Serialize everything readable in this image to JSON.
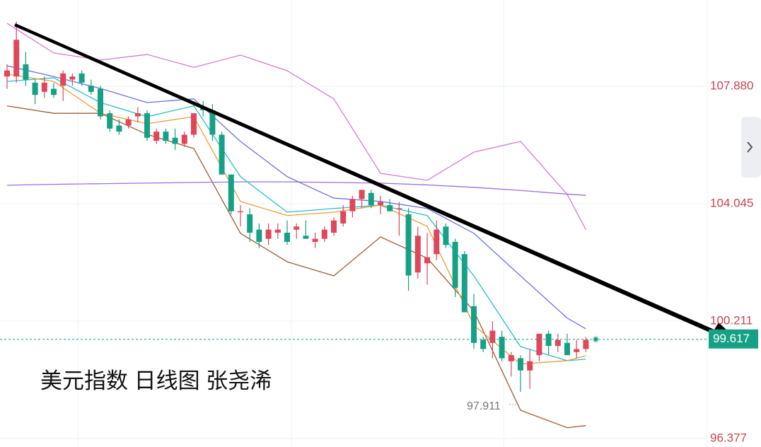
{
  "chart_data": {
    "type": "candlestick",
    "title": "美元指数 日线图 张尧浠",
    "up_color": "#e0475a",
    "down_color": "#16a085",
    "ylim": [
      96.1,
      110.7
    ],
    "yticks": [
      {
        "value": 107.88,
        "label": "107.880"
      },
      104.045,
      100.211,
      96.377
    ],
    "last_price": 99.617,
    "low_label": 97.911,
    "candles": [
      [
        108.2,
        108.6,
        107.8,
        108.4
      ],
      [
        108.2,
        110.0,
        108.0,
        109.4
      ],
      [
        108.6,
        109.0,
        107.9,
        108.1
      ],
      [
        108.0,
        108.1,
        107.3,
        107.6
      ],
      [
        107.7,
        108.2,
        107.5,
        108.0
      ],
      [
        107.8,
        108.0,
        107.5,
        107.6
      ],
      [
        107.9,
        108.4,
        107.4,
        108.3
      ],
      [
        108.1,
        108.3,
        107.9,
        108.2
      ],
      [
        108.3,
        108.4,
        107.9,
        108.0
      ],
      [
        107.9,
        108.1,
        107.6,
        107.7
      ],
      [
        107.8,
        107.9,
        106.8,
        106.9
      ],
      [
        107.0,
        107.1,
        106.4,
        106.5
      ],
      [
        106.6,
        106.8,
        106.3,
        106.4
      ],
      [
        106.6,
        106.9,
        106.5,
        106.8
      ],
      [
        106.9,
        107.2,
        106.7,
        107.0
      ],
      [
        107.0,
        107.1,
        106.1,
        106.2
      ],
      [
        106.1,
        106.5,
        106.0,
        106.4
      ],
      [
        106.4,
        106.5,
        106.0,
        106.1
      ],
      [
        106.2,
        106.5,
        105.8,
        106.0
      ],
      [
        106.0,
        106.4,
        105.9,
        106.3
      ],
      [
        106.3,
        107.0,
        106.2,
        107.0
      ],
      [
        107.2,
        107.4,
        106.9,
        107.1
      ],
      [
        107.1,
        107.3,
        106.1,
        106.3
      ],
      [
        106.3,
        106.4,
        105.0,
        105.0
      ],
      [
        105.0,
        105.0,
        103.7,
        103.8
      ],
      [
        103.8,
        104.0,
        103.3,
        103.8
      ],
      [
        103.7,
        103.9,
        102.8,
        103.1
      ],
      [
        103.2,
        103.4,
        102.6,
        102.8
      ],
      [
        102.9,
        103.4,
        102.7,
        103.2
      ],
      [
        103.1,
        103.4,
        102.9,
        103.2
      ],
      [
        103.1,
        103.5,
        102.7,
        102.8
      ],
      [
        103.2,
        103.4,
        102.9,
        103.3
      ],
      [
        103.0,
        103.5,
        102.9,
        102.9
      ],
      [
        102.8,
        103.1,
        102.6,
        102.9
      ],
      [
        102.9,
        103.3,
        102.8,
        103.2
      ],
      [
        103.1,
        103.6,
        103.0,
        103.5
      ],
      [
        103.4,
        104.0,
        103.3,
        103.8
      ],
      [
        103.8,
        104.3,
        103.6,
        104.2
      ],
      [
        104.2,
        104.5,
        103.9,
        104.5
      ],
      [
        104.4,
        104.5,
        103.9,
        104.0
      ],
      [
        104.0,
        104.3,
        103.7,
        104.1
      ],
      [
        104.0,
        104.2,
        103.8,
        103.8
      ],
      [
        103.9,
        104.1,
        103.0,
        103.9
      ],
      [
        103.7,
        103.9,
        101.2,
        101.7
      ],
      [
        101.8,
        103.3,
        101.6,
        103.0
      ],
      [
        102.1,
        103.1,
        101.4,
        102.3
      ],
      [
        102.4,
        103.5,
        102.2,
        103.2
      ],
      [
        103.3,
        103.4,
        102.6,
        102.7
      ],
      [
        102.8,
        102.9,
        101.0,
        101.3
      ],
      [
        102.4,
        102.5,
        100.5,
        100.5
      ],
      [
        100.7,
        101.1,
        99.3,
        99.5
      ],
      [
        99.6,
        99.7,
        99.2,
        99.3
      ],
      [
        99.5,
        100.2,
        99.0,
        99.9
      ],
      [
        99.7,
        99.9,
        98.9,
        99.0
      ],
      [
        98.9,
        99.2,
        98.4,
        99.1
      ],
      [
        99.0,
        99.1,
        97.9,
        98.6
      ],
      [
        98.6,
        99.3,
        98.0,
        98.9
      ],
      [
        99.1,
        99.8,
        98.9,
        99.8
      ],
      [
        99.8,
        99.9,
        99.1,
        99.4
      ],
      [
        99.4,
        99.8,
        99.2,
        99.6
      ],
      [
        99.5,
        99.8,
        99.1,
        99.1
      ],
      [
        99.2,
        99.6,
        99.0,
        99.3
      ],
      [
        99.3,
        99.7,
        99.2,
        99.6
      ]
    ],
    "overlay_x": [
      0,
      5,
      10,
      15,
      20,
      25,
      30,
      35,
      40,
      45,
      50,
      55,
      60,
      62
    ],
    "overlays": [
      {
        "color": "#d57ad0",
        "values": [
          109.94,
          108.97,
          108.74,
          108.92,
          108.5,
          108.9,
          108.39,
          107.47,
          105.04,
          104.81,
          105.73,
          106.08,
          104.35,
          103.2
        ]
      },
      {
        "color": "#a35a33",
        "values": [
          107.24,
          107.0,
          107.0,
          106.31,
          105.85,
          103.08,
          102.15,
          101.69,
          102.96,
          102.27,
          100.54,
          97.3,
          96.73,
          96.8
        ]
      },
      {
        "color": "#9b6fe0",
        "values": [
          104.65,
          104.68,
          104.7,
          104.72,
          104.74,
          104.76,
          104.76,
          104.74,
          104.72,
          104.66,
          104.58,
          104.48,
          104.36,
          104.32
        ]
      },
      {
        "color": "#6c72e0",
        "values": [
          108.55,
          108.2,
          107.81,
          107.35,
          107.47,
          106.08,
          104.93,
          104.23,
          104.12,
          103.89,
          103.08,
          101.69,
          100.31,
          99.96
        ]
      },
      {
        "color": "#25bfcf",
        "values": [
          108.04,
          108.16,
          107.35,
          106.89,
          107.24,
          104.93,
          103.77,
          103.89,
          104.0,
          103.66,
          101.69,
          99.38,
          98.92,
          98.97
        ]
      },
      {
        "color": "#f19a34",
        "values": [
          108.28,
          108.04,
          107.0,
          106.66,
          106.89,
          104.12,
          103.66,
          103.77,
          104.0,
          103.31,
          100.08,
          98.81,
          98.92,
          99.08
        ]
      }
    ]
  }
}
